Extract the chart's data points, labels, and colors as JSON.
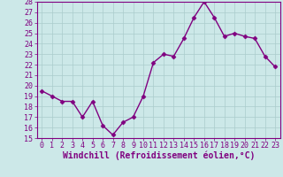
{
  "x": [
    0,
    1,
    2,
    3,
    4,
    5,
    6,
    7,
    8,
    9,
    10,
    11,
    12,
    13,
    14,
    15,
    16,
    17,
    18,
    19,
    20,
    21,
    22,
    23
  ],
  "y": [
    19.5,
    19.0,
    18.5,
    18.5,
    17.0,
    18.5,
    16.2,
    15.3,
    16.5,
    17.0,
    19.0,
    22.2,
    23.0,
    22.8,
    24.5,
    26.5,
    28.0,
    26.5,
    24.7,
    25.0,
    24.7,
    24.5,
    22.8,
    21.8
  ],
  "line_color": "#800080",
  "marker": "D",
  "marker_size": 2.5,
  "bg_color": "#cce8e8",
  "grid_color": "#aacccc",
  "xlabel": "Windchill (Refroidissement éolien,°C)",
  "ylim": [
    15,
    28
  ],
  "xlim_min": -0.5,
  "xlim_max": 23.5,
  "yticks": [
    15,
    16,
    17,
    18,
    19,
    20,
    21,
    22,
    23,
    24,
    25,
    26,
    27,
    28
  ],
  "xticks": [
    0,
    1,
    2,
    3,
    4,
    5,
    6,
    7,
    8,
    9,
    10,
    11,
    12,
    13,
    14,
    15,
    16,
    17,
    18,
    19,
    20,
    21,
    22,
    23
  ],
  "tick_fontsize": 6,
  "xlabel_fontsize": 7
}
